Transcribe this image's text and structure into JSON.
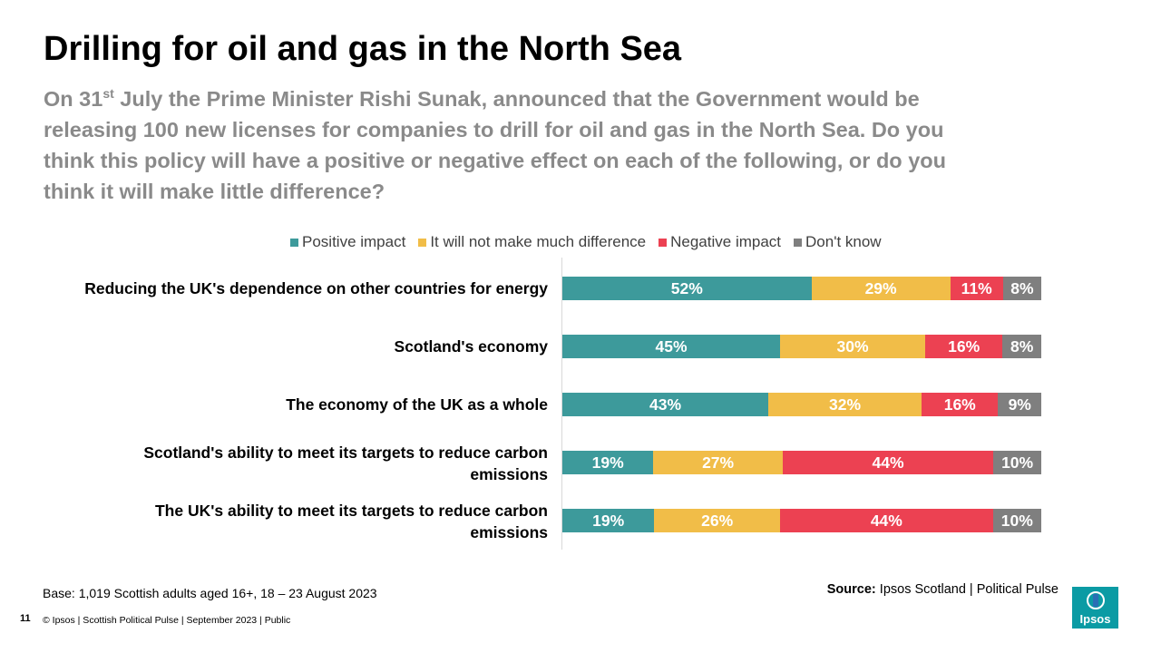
{
  "title": "Drilling for oil and gas in the North Sea",
  "question": {
    "pre": "On 31",
    "sup": "st",
    "post": " July the Prime Minister Rishi Sunak, announced that the Government would be releasing 100 new licenses for companies to drill for oil and gas in the North Sea. Do you think this policy will have a positive or negative effect on each of the following, or do you think it will make little difference?"
  },
  "chart_data": {
    "type": "bar",
    "orientation": "horizontal",
    "stacked": "100%",
    "title": "",
    "xlabel": "",
    "ylabel": "",
    "legend_position": "top",
    "categories": [
      "Reducing the UK's dependence on other countries for energy",
      "Scotland's economy",
      "The economy of the UK as a whole",
      "Scotland's ability  to meet its targets to reduce carbon emissions",
      "The UK's ability  to meet its targets to reduce carbon emissions"
    ],
    "series": [
      {
        "name": "Positive impact",
        "color": "#3d9a9b",
        "values": [
          52,
          45,
          43,
          19,
          19
        ]
      },
      {
        "name": "It will not make much difference",
        "color": "#f1bd48",
        "values": [
          29,
          30,
          32,
          27,
          26
        ]
      },
      {
        "name": "Negative impact",
        "color": "#ec4152",
        "values": [
          11,
          16,
          16,
          44,
          44
        ]
      },
      {
        "name": "Don't know",
        "color": "#7f7f7f",
        "values": [
          8,
          8,
          9,
          10,
          10
        ]
      }
    ],
    "value_suffix": "%"
  },
  "footer": {
    "base": "Base: 1,019 Scottish adults aged 16+, 18 – 23 August 2023",
    "source_label": "Source:",
    "source_text": " Ipsos Scotland | Political Pulse",
    "page_number": "11",
    "copyright": "© Ipsos | Scottish Political Pulse | September 2023 | Public",
    "logo_text": "Ipsos"
  }
}
